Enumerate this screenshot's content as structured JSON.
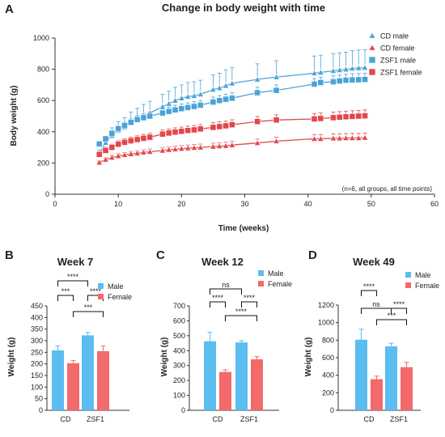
{
  "colors": {
    "male": "#4aa3d8",
    "female": "#e2474b",
    "male_bar": "#5bbdf0",
    "female_bar": "#f26a6a",
    "axis": "#333333"
  },
  "chart_data": [
    {
      "panel": "A",
      "type": "line",
      "title": "Change in body weight with time",
      "xlabel": "Time (weeks)",
      "ylabel": "Body weight (g)",
      "xlim": [
        0,
        60
      ],
      "ylim": [
        0,
        1000
      ],
      "xticks": [
        0,
        10,
        20,
        30,
        40,
        50,
        60
      ],
      "yticks": [
        0,
        200,
        400,
        600,
        800,
        1000
      ],
      "legend_position": "top-right",
      "annotation": "(n=6, all groups, all time points)",
      "series": [
        {
          "name": "CD male",
          "marker": "triangle",
          "color": "#4aa3d8",
          "x": [
            7,
            8,
            9,
            10,
            11,
            12,
            13,
            14,
            15,
            17,
            18,
            19,
            20,
            21,
            22,
            23,
            25,
            26,
            27,
            28,
            32,
            35,
            41,
            42,
            44,
            45,
            46,
            47,
            48,
            49
          ],
          "y": [
            258,
            330,
            375,
            410,
            430,
            460,
            480,
            500,
            520,
            560,
            580,
            600,
            615,
            625,
            630,
            640,
            670,
            680,
            695,
            710,
            735,
            750,
            775,
            780,
            790,
            795,
            800,
            805,
            808,
            810
          ],
          "err": [
            25,
            40,
            50,
            55,
            60,
            65,
            70,
            75,
            75,
            80,
            80,
            85,
            85,
            90,
            90,
            90,
            95,
            95,
            100,
            100,
            100,
            105,
            110,
            110,
            110,
            110,
            110,
            115,
            115,
            115
          ]
        },
        {
          "name": "CD female",
          "marker": "triangle",
          "color": "#e2474b",
          "x": [
            7,
            8,
            9,
            10,
            11,
            12,
            13,
            14,
            15,
            17,
            18,
            19,
            20,
            21,
            22,
            23,
            25,
            26,
            27,
            28,
            32,
            35,
            41,
            42,
            44,
            45,
            46,
            47,
            48,
            49
          ],
          "y": [
            203,
            222,
            235,
            245,
            252,
            258,
            262,
            268,
            272,
            280,
            285,
            288,
            292,
            295,
            298,
            300,
            305,
            308,
            310,
            315,
            328,
            340,
            355,
            355,
            358,
            358,
            360,
            360,
            360,
            362
          ],
          "err": [
            10,
            12,
            14,
            15,
            15,
            16,
            17,
            17,
            18,
            18,
            19,
            20,
            20,
            20,
            21,
            21,
            22,
            22,
            23,
            23,
            25,
            25,
            27,
            27,
            28,
            28,
            28,
            29,
            29,
            30
          ]
        },
        {
          "name": "ZSF1 male",
          "marker": "square",
          "color": "#4aa3d8",
          "x": [
            7,
            8,
            9,
            10,
            11,
            12,
            13,
            14,
            15,
            17,
            18,
            19,
            20,
            21,
            22,
            23,
            25,
            26,
            27,
            28,
            32,
            35,
            41,
            42,
            44,
            45,
            46,
            47,
            48,
            49
          ],
          "y": [
            322,
            355,
            390,
            420,
            440,
            460,
            478,
            490,
            500,
            520,
            530,
            540,
            548,
            555,
            562,
            570,
            590,
            600,
            608,
            615,
            650,
            665,
            705,
            715,
            720,
            725,
            730,
            732,
            733,
            735
          ],
          "err": [
            12,
            14,
            16,
            18,
            20,
            22,
            25,
            25,
            25,
            28,
            28,
            30,
            30,
            30,
            30,
            30,
            32,
            32,
            32,
            35,
            35,
            35,
            35,
            35,
            38,
            38,
            38,
            40,
            40,
            40
          ]
        },
        {
          "name": "ZSF1 female",
          "marker": "square",
          "color": "#e2474b",
          "x": [
            7,
            8,
            9,
            10,
            11,
            12,
            13,
            14,
            15,
            17,
            18,
            19,
            20,
            21,
            22,
            23,
            25,
            26,
            27,
            28,
            32,
            35,
            41,
            42,
            44,
            45,
            46,
            47,
            48,
            49
          ],
          "y": [
            255,
            280,
            300,
            320,
            332,
            342,
            350,
            358,
            365,
            385,
            392,
            398,
            403,
            408,
            412,
            418,
            428,
            433,
            438,
            445,
            465,
            475,
            482,
            485,
            490,
            493,
            496,
            498,
            500,
            502
          ],
          "err": [
            18,
            20,
            20,
            22,
            22,
            23,
            24,
            25,
            25,
            26,
            26,
            27,
            27,
            28,
            28,
            28,
            30,
            30,
            30,
            32,
            33,
            33,
            35,
            35,
            36,
            36,
            36,
            37,
            37,
            38
          ]
        }
      ]
    },
    {
      "panel": "B",
      "type": "bar",
      "title": "Week 7",
      "ylabel": "Weight (g)",
      "categories": [
        "CD",
        "ZSF1"
      ],
      "ylim": [
        0,
        450
      ],
      "yticks": [
        0,
        50,
        100,
        150,
        200,
        250,
        300,
        350,
        400,
        450
      ],
      "legend_position": "top-right",
      "series": [
        {
          "name": "Male",
          "values": [
            258,
            323
          ],
          "err": [
            20,
            12
          ]
        },
        {
          "name": "Female",
          "values": [
            203,
            255
          ],
          "err": [
            12,
            22
          ]
        }
      ],
      "significance": [
        {
          "pair": [
            "CD Male",
            "ZSF1 Male"
          ],
          "label": "****",
          "level": 0
        },
        {
          "pair": [
            "CD Male",
            "CD Female"
          ],
          "label": "***",
          "level": 1
        },
        {
          "pair": [
            "ZSF1 Male",
            "ZSF1 Female"
          ],
          "label": "****",
          "level": 1
        },
        {
          "pair": [
            "CD Female",
            "ZSF1 Female"
          ],
          "label": "***",
          "level": 2
        }
      ]
    },
    {
      "panel": "C",
      "type": "bar",
      "title": "Week 12",
      "ylabel": "Weight (g)",
      "categories": [
        "CD",
        "ZSF1"
      ],
      "ylim": [
        0,
        700
      ],
      "yticks": [
        0,
        100,
        200,
        300,
        400,
        500,
        600,
        700
      ],
      "legend_position": "top-right",
      "series": [
        {
          "name": "Male",
          "values": [
            463,
            455
          ],
          "err": [
            60,
            12
          ]
        },
        {
          "name": "Female",
          "values": [
            257,
            342
          ],
          "err": [
            15,
            18
          ]
        }
      ],
      "significance": [
        {
          "pair": [
            "CD Male",
            "ZSF1 Male"
          ],
          "label": "ns",
          "level": 0
        },
        {
          "pair": [
            "CD Male",
            "CD Female"
          ],
          "label": "****",
          "level": 1
        },
        {
          "pair": [
            "ZSF1 Male",
            "ZSF1 Female"
          ],
          "label": "****",
          "level": 1
        },
        {
          "pair": [
            "CD Female",
            "ZSF1 Female"
          ],
          "label": "****",
          "level": 2
        }
      ]
    },
    {
      "panel": "D",
      "type": "bar",
      "title": "Week 49",
      "ylabel": "Weight (g)",
      "categories": [
        "CD",
        "ZSF1"
      ],
      "ylim": [
        0,
        1200
      ],
      "yticks": [
        0,
        200,
        400,
        600,
        800,
        1000,
        1200
      ],
      "legend_position": "top-right",
      "series": [
        {
          "name": "Male",
          "values": [
            805,
            730
          ],
          "err": [
            120,
            35
          ]
        },
        {
          "name": "Female",
          "values": [
            355,
            492
          ],
          "err": [
            35,
            55
          ]
        }
      ],
      "significance": [
        {
          "pair": [
            "CD Male",
            "CD Female"
          ],
          "label": "****",
          "level": 0
        },
        {
          "pair": [
            "CD Male",
            "ZSF1 Male"
          ],
          "label": "ns",
          "level": 1
        },
        {
          "pair": [
            "ZSF1 Male",
            "ZSF1 Female"
          ],
          "label": "****",
          "level": 1
        },
        {
          "pair": [
            "CD Female",
            "ZSF1 Female"
          ],
          "label": "***",
          "level": 2
        }
      ]
    }
  ]
}
